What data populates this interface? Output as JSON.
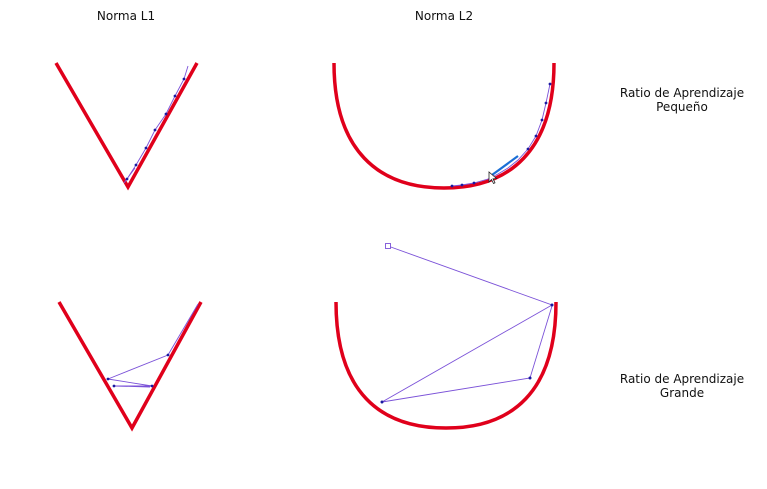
{
  "columns": {
    "l1": "Norma L1",
    "l2": "Norma L2"
  },
  "rows": {
    "small": {
      "line1": "Ratio de Aprendizaje",
      "line2": "Pequeño"
    },
    "large": {
      "line1": "Ratio de Aprendizaje",
      "line2": "Grande"
    }
  },
  "colors": {
    "curve": "#e0001b",
    "path": "#7b52d8",
    "point": "#1a1aa0",
    "cursor_stroke": "#1a6fd6"
  }
}
